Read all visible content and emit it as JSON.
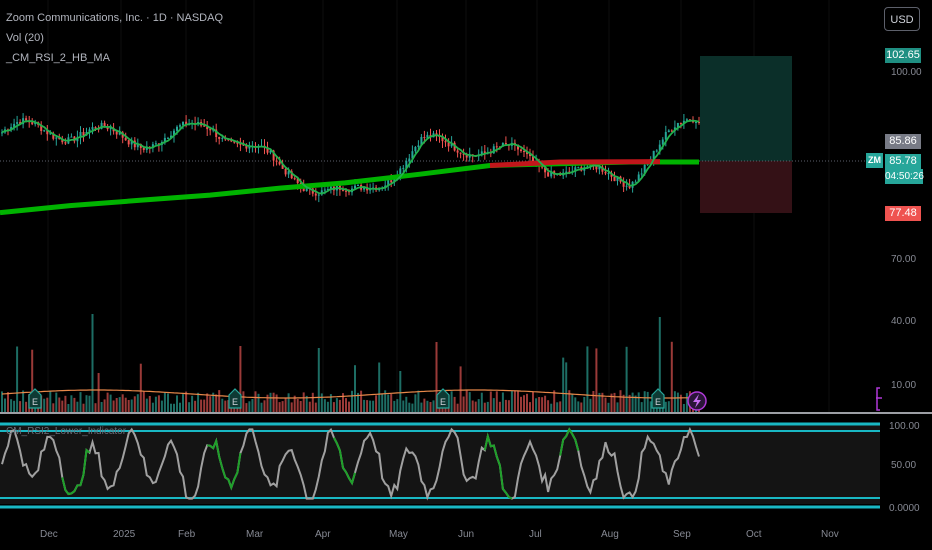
{
  "legend": {
    "symbol_line": "Zoom Communications, Inc. · 1D · NASDAQ",
    "indicator_1": "Vol (20)",
    "indicator_2": "_CM_RSI_2_HB_MA",
    "rsi_pane_label": "CM_RSI2_Lower_Indicator"
  },
  "toolbar": {
    "currency_label": "USD"
  },
  "price_scale": {
    "tags": {
      "target": "102.65",
      "upper": "85.86",
      "last": "85.78",
      "countdown": "04:50:26",
      "stop": "77.48"
    },
    "ticks": [
      "100.00",
      "70.00",
      "40.00",
      "10.00"
    ],
    "ticker": "ZM"
  },
  "rsi_scale": {
    "ticks": [
      "100.00",
      "50.00",
      "0.0000"
    ]
  },
  "time_axis": {
    "labels": [
      "Dec",
      "2025",
      "Feb",
      "Mar",
      "Apr",
      "May",
      "Jun",
      "Jul",
      "Aug",
      "Sep",
      "Oct",
      "Nov"
    ]
  },
  "events": {
    "earnings_label": "E"
  },
  "colors": {
    "up": "#26a69a",
    "down": "#ef5350",
    "ma_green": "#00b300",
    "ma_red": "#c2161b",
    "rsi_line": "#a0a0a0",
    "band": "#19b8c4",
    "target_zone": "#0d3b33",
    "stop_zone": "#3d1418"
  },
  "chart_data": {
    "type": "line",
    "y_axis_price_ticks": [
      100,
      70,
      40,
      10
    ],
    "moving_average_long": {
      "x": [
        "Nov",
        "Dec",
        "2025",
        "Feb",
        "Mar",
        "Apr",
        "May",
        "Jun",
        "Jul",
        "Aug",
        "Sep"
      ],
      "values": [
        60.0,
        62.0,
        63.5,
        65.0,
        67.0,
        68.5,
        71.0,
        73.5,
        74.5,
        74.5,
        74.5
      ]
    },
    "price_close_approx": {
      "x": [
        "Nov",
        "Dec",
        "2025",
        "Feb",
        "Mar",
        "Apr",
        "May",
        "Jun",
        "Jul",
        "Aug",
        "Sep"
      ],
      "values": [
        83,
        81,
        83,
        85,
        70,
        66,
        79,
        76,
        75,
        70,
        85.78
      ]
    },
    "trade_box": {
      "entry": 85.86,
      "target": 102.65,
      "stop": 77.48
    },
    "rsi": {
      "ylim": [
        0,
        100
      ],
      "bands": [
        10,
        90
      ],
      "ticks": [
        100,
        50,
        0
      ]
    }
  }
}
